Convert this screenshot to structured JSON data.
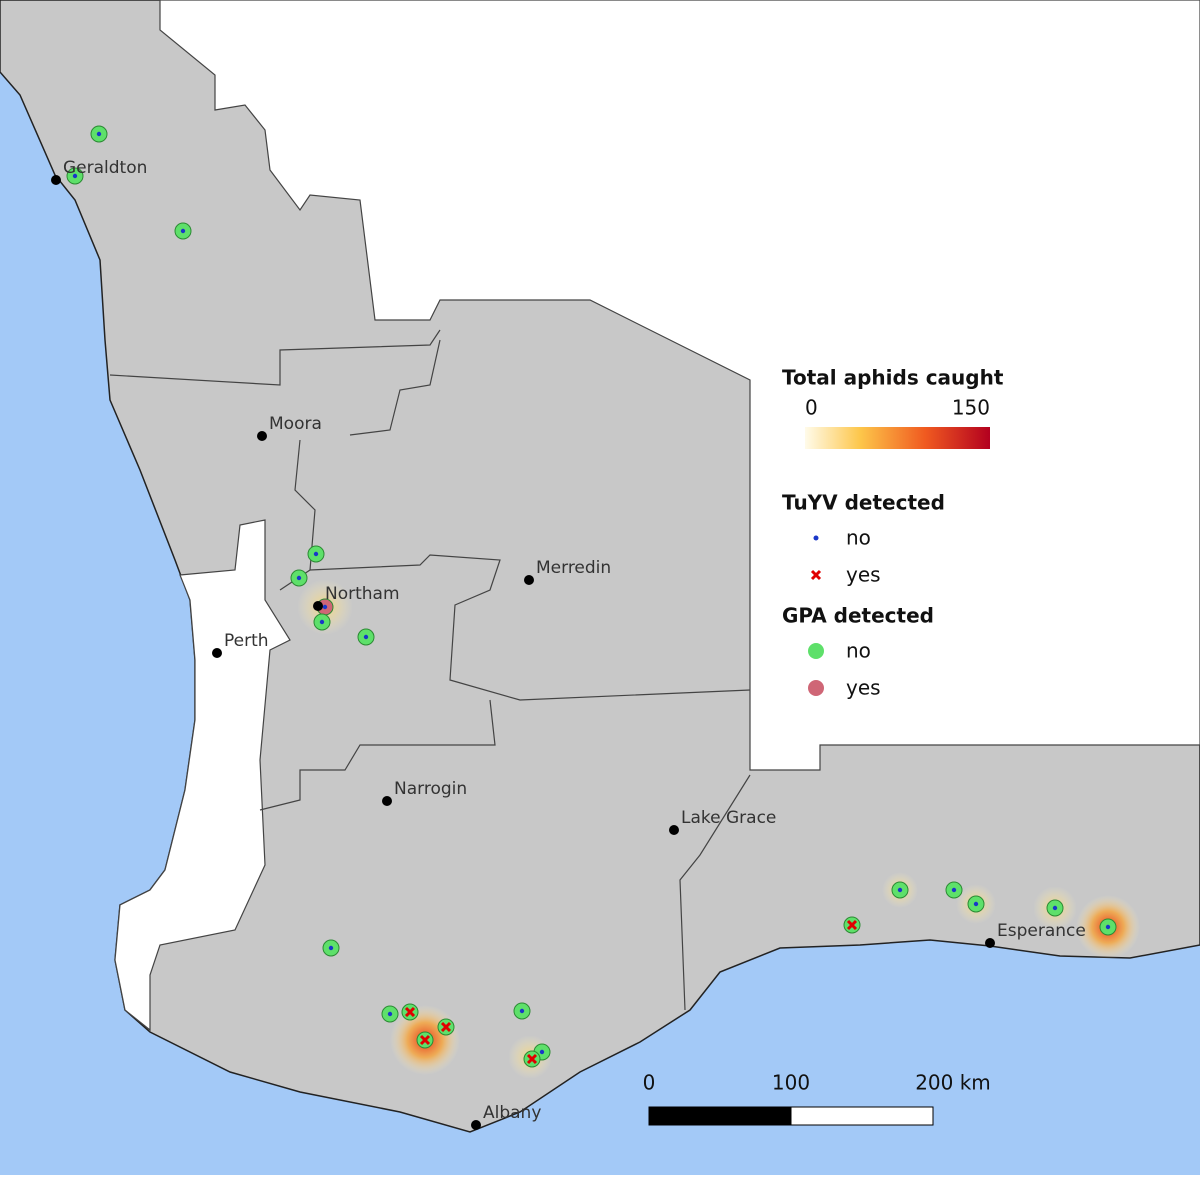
{
  "legend": {
    "heat_title": "Total aphids caught",
    "heat_ticks": [
      0,
      150
    ],
    "tuyv_title": "TuYV detected",
    "tuyv_labels": [
      "no",
      "yes"
    ],
    "gpa_title": "GPA detected",
    "gpa_labels": [
      "no",
      "yes"
    ]
  },
  "towns": [
    "Geraldton",
    "Moora",
    "Northam",
    "Merredin",
    "Perth",
    "Narrogin",
    "Lake Grace",
    "Esperance",
    "Albany"
  ],
  "scale_bar": {
    "ticks": [
      0,
      100,
      {
        "value": 200,
        "label": "200 km"
      }
    ]
  }
}
